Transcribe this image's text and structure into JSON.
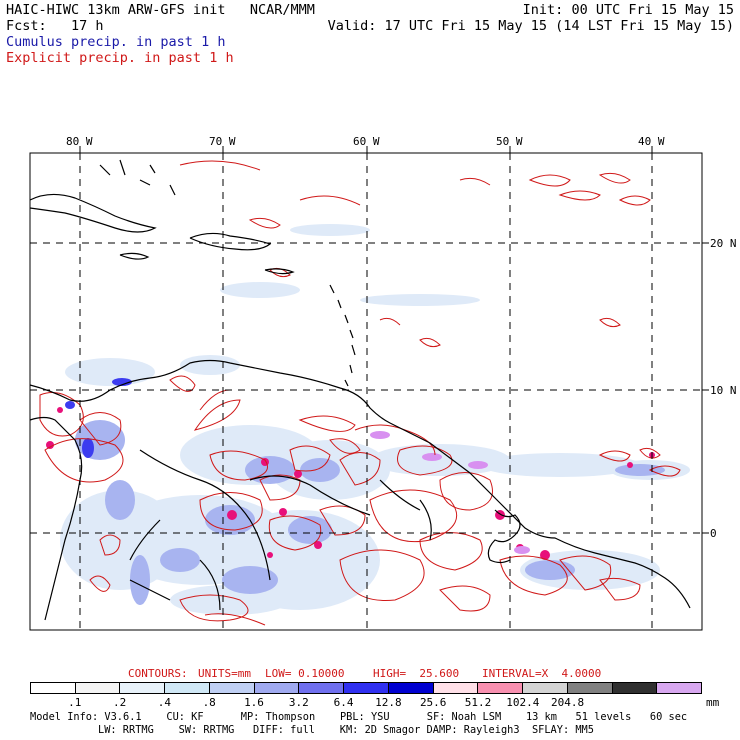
{
  "header": {
    "title": "HAIC-HIWC 13km ARW-GFS init   NCAR/MMM",
    "init": "Init: 00 UTC Fri 15 May 15",
    "fcst": "Fcst:   17 h",
    "valid": "Valid: 17 UTC Fri 15 May 15 (14 LST Fri 15 May 15)",
    "legend_cumulus": "Cumulus precip. in past 1 h",
    "legend_explicit": "Explicit precip. in past 1 h"
  },
  "map": {
    "lon_labels": [
      "80 W",
      "70 W",
      "60 W",
      "50 W",
      "40 W"
    ],
    "lat_labels": [
      "20 N",
      "10 N",
      "0"
    ],
    "colors": {
      "coast": "#000000",
      "grid": "#000000",
      "explicit_contour": "#d01818",
      "cumulus_light": "#dfeaf8",
      "cumulus_mid": "#a8b4f0",
      "cumulus_dark": "#3c3cf0",
      "explicit_fill": "#e8107a",
      "high_fill": "#d890f0"
    }
  },
  "contours_info": {
    "contours": "CONTOURS:",
    "units": "UNITS=mm",
    "low": "LOW= 0.10000",
    "high": "HIGH=  25.600",
    "interval": "INTERVAL=X  4.0000"
  },
  "colorbar": {
    "colors": [
      "#ffffff",
      "#f4f4f4",
      "#e8f2fa",
      "#d0e8f6",
      "#c0d0f4",
      "#a0aaf0",
      "#7070ee",
      "#3030f0",
      "#0000d0",
      "#ffe0e8",
      "#f890b0",
      "#d4d4d4",
      "#808080",
      "#303030",
      "#d8a8f0"
    ],
    "labels": [
      ".1",
      ".2",
      ".4",
      ".8",
      "1.6",
      "3.2",
      "6.4",
      "12.8",
      "25.6",
      "51.2",
      "102.4",
      "204.8"
    ],
    "units": "mm"
  },
  "model_info": {
    "line1": "Model Info: V3.6.1    CU: KF      MP: Thompson    PBL: YSU      SF: Noah LSM    13 km   51 levels   60 sec",
    "line2": "LW: RRTMG    SW: RRTMG   DIFF: full    KM: 2D Smagor DAMP: Rayleigh3  SFLAY: MM5"
  }
}
